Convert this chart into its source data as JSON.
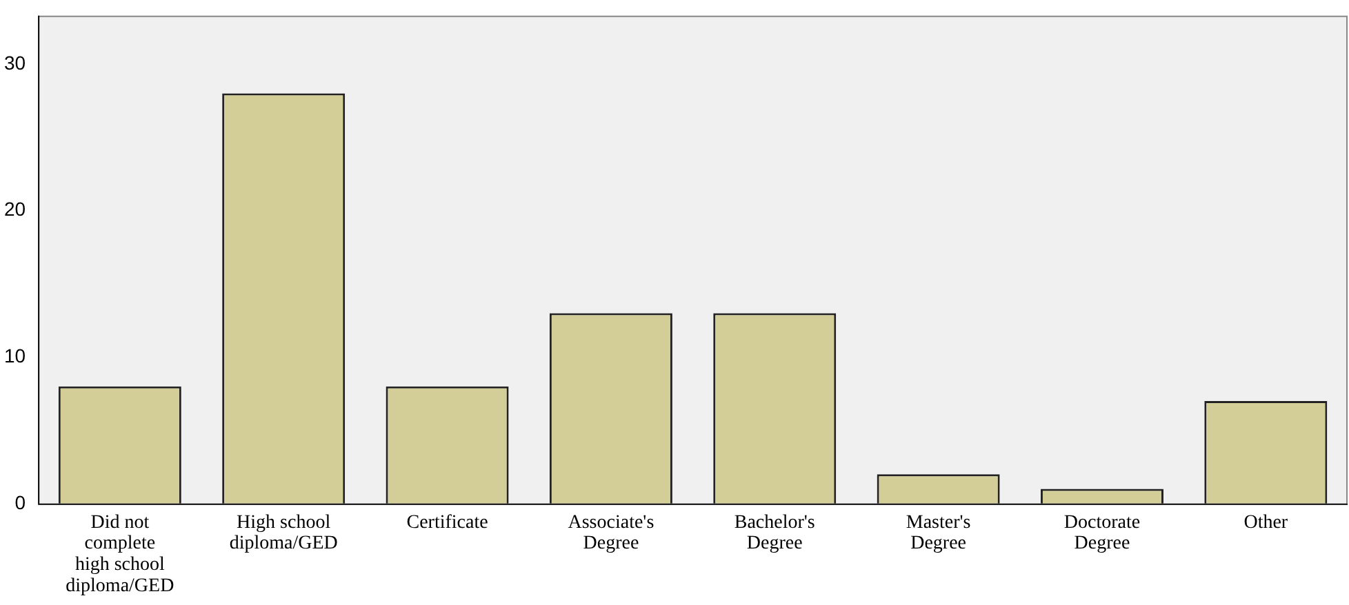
{
  "chart_data": {
    "type": "bar",
    "categories": [
      "Did not complete high school diploma/GED",
      "High school diploma/GED",
      "Certificate",
      "Associate's Degree",
      "Bachelor's Degree",
      "Master's Degree",
      "Doctorate Degree",
      "Other"
    ],
    "values": [
      8,
      28,
      8,
      13,
      13,
      2,
      1,
      7
    ],
    "color": "#d3ce97",
    "ylim": [
      0,
      33.3
    ],
    "yticks": [
      0,
      10,
      20,
      30
    ],
    "grid": false,
    "legend": false
  }
}
